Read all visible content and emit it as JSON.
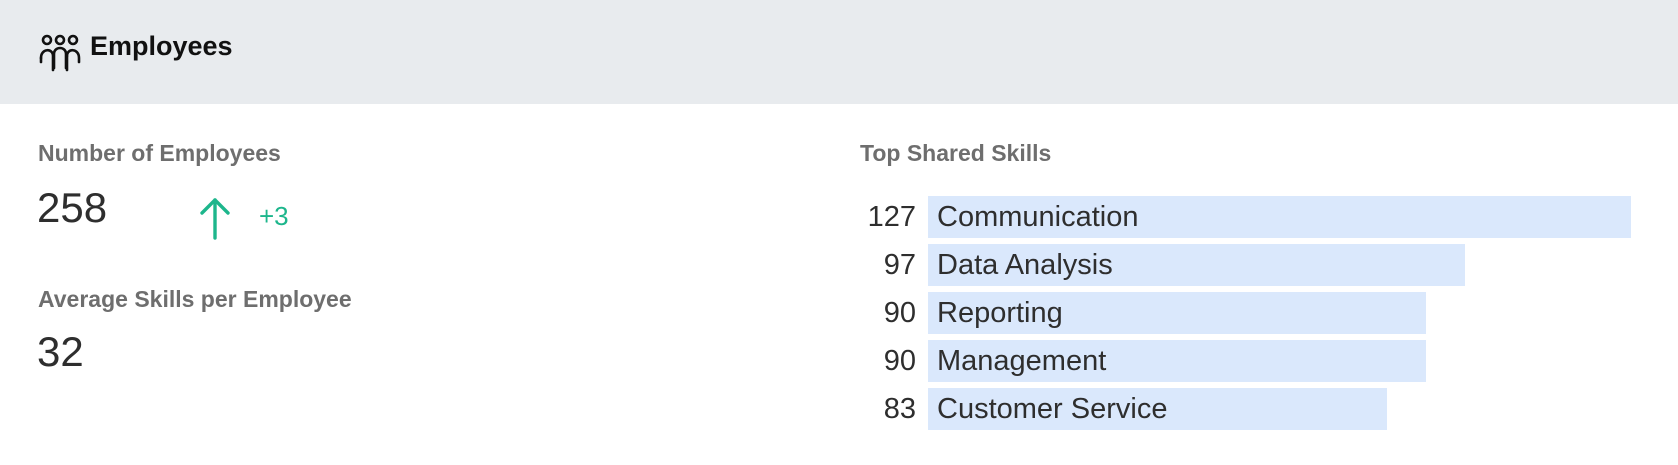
{
  "header": {
    "title": "Employees",
    "icon": "people-group-icon"
  },
  "employees": {
    "count_label": "Number of Employees",
    "count_value": "258",
    "trend_icon": "arrow-up-icon",
    "trend_delta": "+3",
    "avg_label": "Average Skills per Employee",
    "avg_value": "32"
  },
  "skills": {
    "title": "Top Shared Skills",
    "items": [
      {
        "count": 127,
        "name": "Communication"
      },
      {
        "count": 97,
        "name": "Data Analysis"
      },
      {
        "count": 90,
        "name": "Reporting"
      },
      {
        "count": 90,
        "name": "Management"
      },
      {
        "count": 83,
        "name": "Customer Service"
      }
    ]
  },
  "colors": {
    "header_bg": "#e8ebee",
    "bar": "#dae8fc",
    "trend": "#1db68c"
  }
}
